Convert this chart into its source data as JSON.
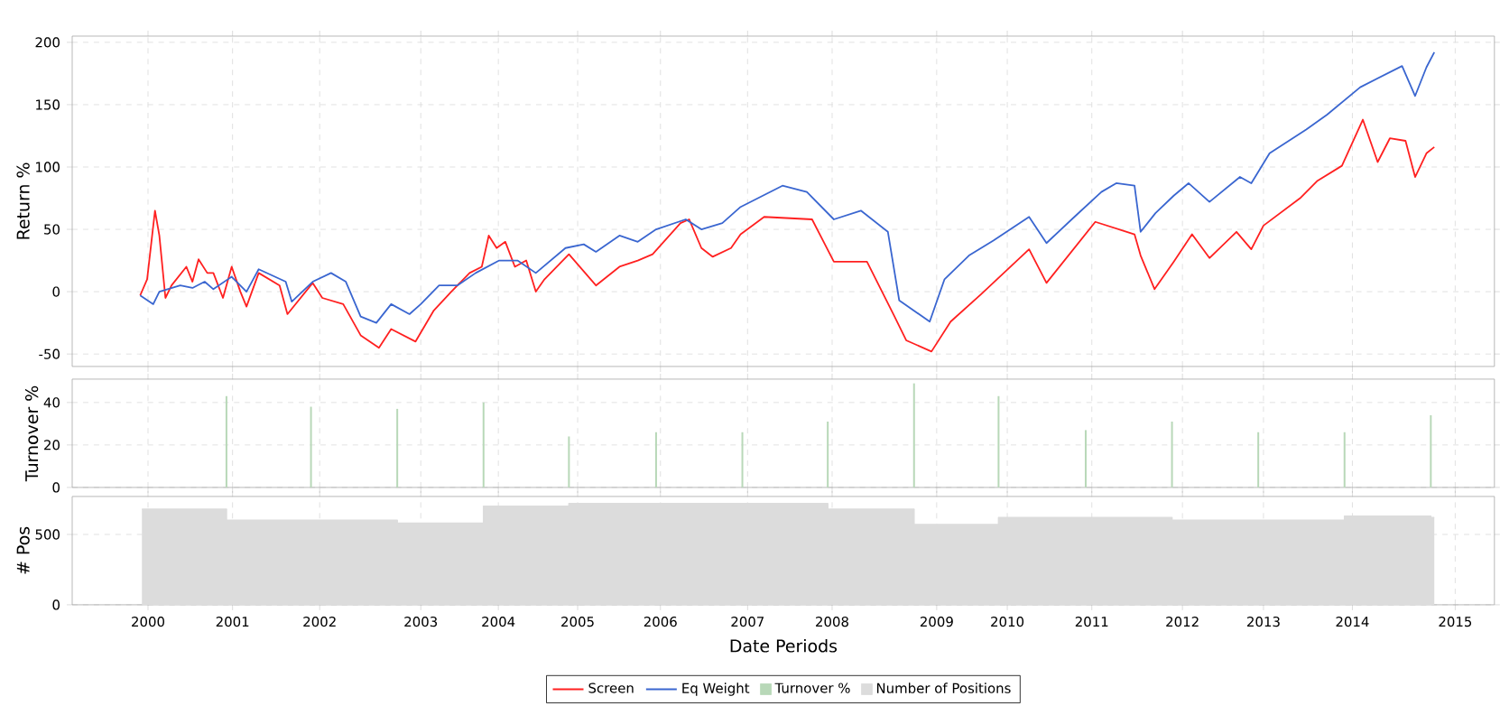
{
  "chart_data": [
    {
      "type": "line",
      "ylabel": "Return %",
      "xlim": [
        1999.13,
        2015.45
      ],
      "ylim": [
        -60,
        205
      ],
      "xticks": [
        {
          "value": 2000,
          "label": null
        },
        {
          "value": 2000.97,
          "label": null
        },
        {
          "value": 2001.97,
          "label": null
        },
        {
          "value": 2003.13,
          "label": null
        },
        {
          "value": 2004.02,
          "label": null
        },
        {
          "value": 2004.93,
          "label": null
        },
        {
          "value": 2005.88,
          "label": null
        },
        {
          "value": 2006.88,
          "label": null
        },
        {
          "value": 2007.85,
          "label": null
        },
        {
          "value": 2009.05,
          "label": null
        },
        {
          "value": 2009.86,
          "label": null
        },
        {
          "value": 2010.83,
          "label": null
        },
        {
          "value": 2011.87,
          "label": null
        },
        {
          "value": 2012.8,
          "label": null
        },
        {
          "value": 2013.82,
          "label": null
        },
        {
          "value": 2015,
          "label": null
        }
      ],
      "yticks": [
        -50,
        0,
        50,
        100,
        150,
        200
      ],
      "grid": true,
      "tick_labels": "y",
      "legend": "bottom",
      "series": [
        {
          "name": "Screen",
          "color": "#ff2020",
          "x": [
            1999.91,
            1999.99,
            2000.08,
            2000.13,
            2000.2,
            2000.27,
            2000.44,
            2000.51,
            2000.58,
            2000.68,
            2000.75,
            2000.86,
            2000.96,
            2001.06,
            2001.13,
            2001.27,
            2001.51,
            2001.6,
            2001.89,
            2002.0,
            2002.24,
            2002.44,
            2002.65,
            2002.79,
            2003.07,
            2003.28,
            2003.48,
            2003.69,
            2003.83,
            2003.91,
            2004.0,
            2004.1,
            2004.21,
            2004.34,
            2004.45,
            2004.55,
            2004.83,
            2005.14,
            2005.41,
            2005.62,
            2005.79,
            2006.11,
            2006.21,
            2006.35,
            2006.48,
            2006.69,
            2006.8,
            2007.07,
            2007.62,
            2007.87,
            2008.25,
            2008.56,
            2008.7,
            2008.99,
            2009.21,
            2009.56,
            2010.11,
            2010.31,
            2010.87,
            2011.32,
            2011.39,
            2011.55,
            2011.77,
            2011.98,
            2012.18,
            2012.49,
            2012.66,
            2012.8,
            2013.22,
            2013.42,
            2013.7,
            2013.94,
            2014.11,
            2014.25,
            2014.43,
            2014.54,
            2014.67,
            2014.76
          ],
          "values": [
            -3,
            10,
            65,
            45,
            -5,
            5,
            20,
            8,
            26,
            15,
            15,
            -5,
            20,
            0,
            -12,
            15,
            5,
            -18,
            7,
            -5,
            -10,
            -35,
            -45,
            -30,
            -40,
            -15,
            0,
            15,
            20,
            45,
            35,
            40,
            20,
            25,
            0,
            10,
            30,
            5,
            20,
            25,
            30,
            55,
            58,
            35,
            28,
            35,
            46,
            60,
            58,
            24,
            24,
            -19,
            -39,
            -48,
            -24,
            -2,
            34,
            7,
            56,
            46,
            29,
            2,
            24,
            46,
            27,
            48,
            34,
            53,
            75,
            89,
            101,
            138,
            104,
            123,
            121,
            92,
            111,
            116
          ]
        },
        {
          "name": "Eq Weight",
          "color": "#3a66d0",
          "x": [
            1999.91,
            2000.06,
            2000.13,
            2000.37,
            2000.51,
            2000.65,
            2000.75,
            2000.96,
            2001.13,
            2001.27,
            2001.58,
            2001.65,
            2001.89,
            2002.1,
            2002.27,
            2002.44,
            2002.62,
            2002.79,
            2003.0,
            2003.13,
            2003.34,
            2003.55,
            2003.76,
            2004.03,
            2004.24,
            2004.45,
            2004.79,
            2005.0,
            2005.14,
            2005.41,
            2005.62,
            2005.83,
            2006.17,
            2006.35,
            2006.59,
            2006.8,
            2007.28,
            2007.56,
            2007.87,
            2008.18,
            2008.49,
            2008.62,
            2008.97,
            2009.14,
            2009.42,
            2009.7,
            2010.11,
            2010.31,
            2010.63,
            2010.94,
            2011.11,
            2011.32,
            2011.39,
            2011.56,
            2011.77,
            2011.94,
            2012.18,
            2012.53,
            2012.66,
            2012.87,
            2013.29,
            2013.53,
            2013.91,
            2014.39,
            2014.54,
            2014.67,
            2014.76
          ],
          "values": [
            -3,
            -10,
            0,
            5,
            3,
            8,
            2,
            12,
            0,
            18,
            8,
            -8,
            8,
            15,
            8,
            -20,
            -25,
            -10,
            -18,
            -10,
            5,
            5,
            15,
            25,
            25,
            15,
            35,
            38,
            32,
            45,
            40,
            50,
            58,
            50,
            55,
            68,
            85,
            80,
            58,
            65,
            48,
            -7,
            -24,
            10,
            29,
            41,
            60,
            39,
            60,
            80,
            87,
            85,
            48,
            63,
            77,
            87,
            72,
            92,
            87,
            111,
            130,
            142,
            164,
            181,
            157,
            180,
            192
          ]
        }
      ]
    },
    {
      "type": "bar",
      "ylabel": "Turnover %",
      "xlim": [
        1999.13,
        2015.45
      ],
      "ylim": [
        0,
        51
      ],
      "xticks": [
        {
          "value": 2000,
          "label": null
        },
        {
          "value": 2000.97,
          "label": null
        },
        {
          "value": 2001.97,
          "label": null
        },
        {
          "value": 2003.13,
          "label": null
        },
        {
          "value": 2004.02,
          "label": null
        },
        {
          "value": 2004.93,
          "label": null
        },
        {
          "value": 2005.88,
          "label": null
        },
        {
          "value": 2006.88,
          "label": null
        },
        {
          "value": 2007.85,
          "label": null
        },
        {
          "value": 2009.05,
          "label": null
        },
        {
          "value": 2009.86,
          "label": null
        },
        {
          "value": 2010.83,
          "label": null
        },
        {
          "value": 2011.87,
          "label": null
        },
        {
          "value": 2012.8,
          "label": null
        },
        {
          "value": 2013.82,
          "label": null
        },
        {
          "value": 2015,
          "label": null
        }
      ],
      "yticks": [
        0,
        20,
        40
      ],
      "grid": true,
      "tick_labels": "y",
      "legend": "bottom",
      "series": [
        {
          "name": "Turnover %",
          "color": "#b8d8b8",
          "x": [
            2000.9,
            2001.87,
            2002.86,
            2003.85,
            2004.83,
            2005.83,
            2006.82,
            2007.8,
            2008.79,
            2009.76,
            2010.76,
            2011.75,
            2012.74,
            2013.73,
            2014.72
          ],
          "values": [
            43,
            38,
            37,
            40,
            24,
            26,
            26,
            31,
            49,
            43,
            27,
            31,
            26,
            26,
            34
          ]
        }
      ]
    },
    {
      "type": "step",
      "ylabel": "# Pos",
      "xlabel": "Date Periods",
      "xlim": [
        1999.13,
        2015.45
      ],
      "ylim": [
        0,
        770
      ],
      "xticks": [
        {
          "value": 2000,
          "label": "2000"
        },
        {
          "value": 2000.97,
          "label": "2001"
        },
        {
          "value": 2001.97,
          "label": "2002"
        },
        {
          "value": 2003.13,
          "label": "2003"
        },
        {
          "value": 2004.02,
          "label": "2004"
        },
        {
          "value": 2004.93,
          "label": "2005"
        },
        {
          "value": 2005.88,
          "label": "2006"
        },
        {
          "value": 2006.88,
          "label": "2007"
        },
        {
          "value": 2007.85,
          "label": "2008"
        },
        {
          "value": 2009.05,
          "label": "2009"
        },
        {
          "value": 2009.86,
          "label": "2010"
        },
        {
          "value": 2010.83,
          "label": "2011"
        },
        {
          "value": 2011.87,
          "label": "2012"
        },
        {
          "value": 2012.8,
          "label": "2013"
        },
        {
          "value": 2013.82,
          "label": "2014"
        },
        {
          "value": 2015,
          "label": "2015"
        }
      ],
      "yticks": [
        0,
        500
      ],
      "grid": true,
      "legend": "bottom",
      "series": [
        {
          "name": "Number of Positions",
          "color": "#dcdcdc",
          "x": [
            1999.93,
            2000.9,
            2002.86,
            2003.85,
            2004.83,
            2006.82,
            2007.8,
            2008.79,
            2009.76,
            2010.76,
            2011.75,
            2012.74,
            2013.73,
            2014.72,
            2014.76
          ],
          "values": [
            680,
            600,
            580,
            700,
            720,
            720,
            680,
            570,
            620,
            620,
            600,
            600,
            630,
            620,
            620
          ]
        }
      ]
    }
  ]
}
